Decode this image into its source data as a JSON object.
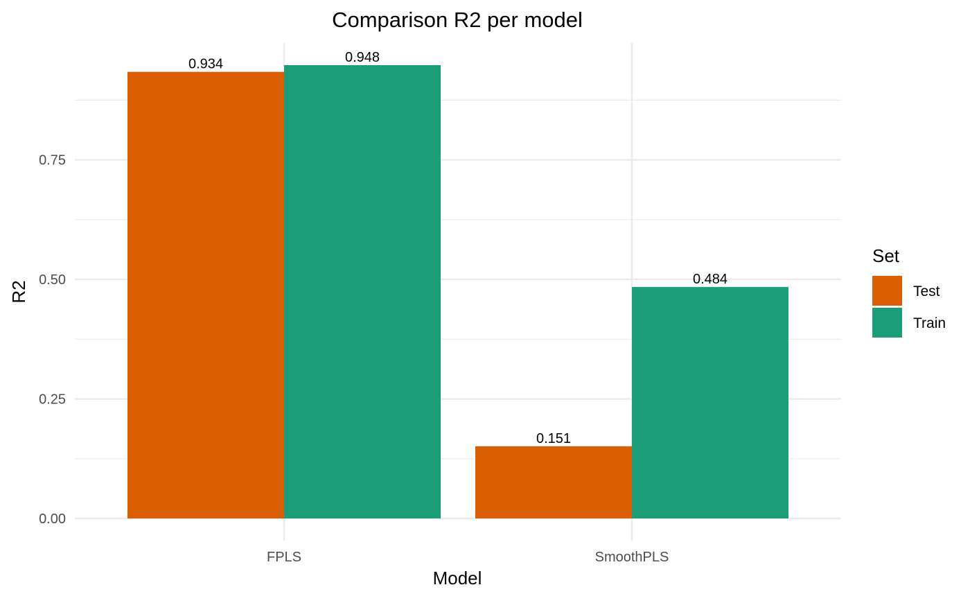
{
  "chart_data": {
    "type": "bar",
    "title": "Comparison R2 per model",
    "xlabel": "Model",
    "ylabel": "R2",
    "categories": [
      "FPLS",
      "SmoothPLS"
    ],
    "series": [
      {
        "name": "Test",
        "values": [
          0.934,
          0.151
        ],
        "labels": [
          "0.934",
          "0.151"
        ],
        "color": "#D95F02"
      },
      {
        "name": "Train",
        "values": [
          0.948,
          0.484
        ],
        "labels": [
          "0.948",
          "0.484"
        ],
        "color": "#1B9E77"
      }
    ],
    "ylim": [
      0,
      0.948
    ],
    "yticks": [
      0,
      0.25,
      0.5,
      0.75
    ],
    "ytick_labels": [
      "0.00",
      "0.25",
      "0.50",
      "0.75"
    ],
    "grid": true,
    "legend": {
      "title": "Set",
      "position": "right"
    }
  }
}
